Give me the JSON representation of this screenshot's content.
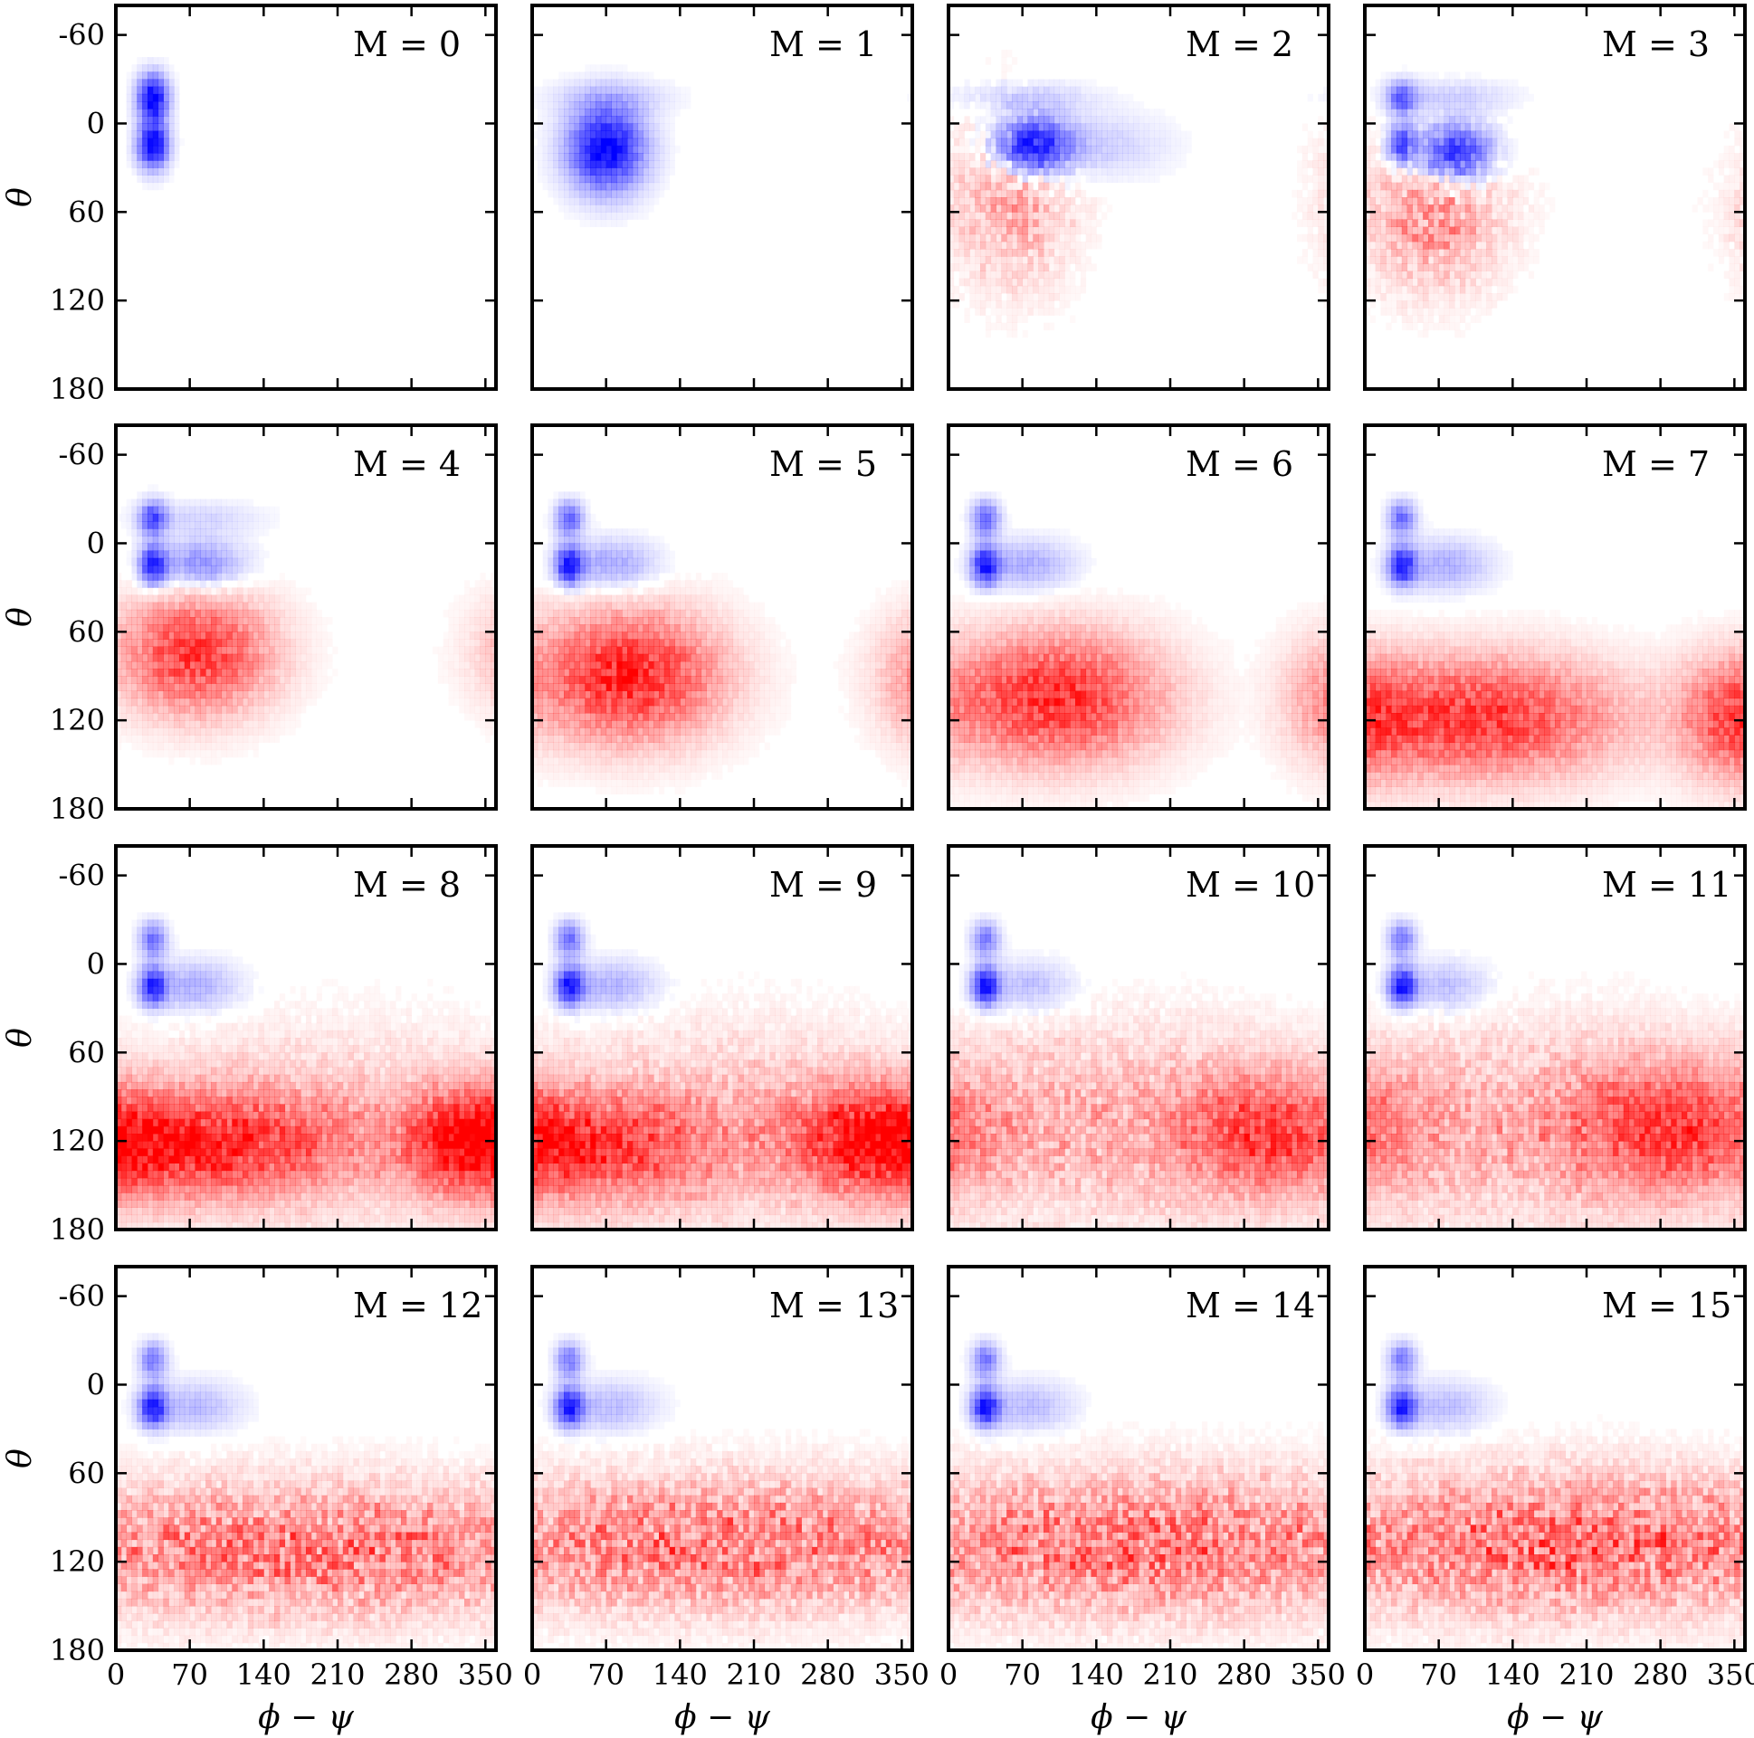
{
  "chart_data": {
    "type": "heatmap",
    "layout": "4x4 grid of panels",
    "xlabel": "ϕ − ψ",
    "ylabel": "θ",
    "xlim": [
      0,
      360
    ],
    "ylim": [
      -80,
      180
    ],
    "y_inverted": true,
    "xticks": [
      0,
      70,
      140,
      210,
      280,
      350
    ],
    "yticks": [
      -60,
      0,
      60,
      120,
      180
    ],
    "colors": {
      "positive": "#ff0000",
      "negative": "#0000ff",
      "zero": "#ffffff"
    },
    "panels": [
      {
        "title": "M = 0",
        "blue": [
          {
            "phi": 35,
            "theta": -17,
            "sphi": 10,
            "stheta": 11,
            "amp": 1.0
          },
          {
            "phi": 35,
            "theta": 15,
            "sphi": 10,
            "stheta": 11,
            "amp": 1.0
          }
        ],
        "red": []
      },
      {
        "title": "M = 1",
        "blue": [
          {
            "phi": 70,
            "theta": 17,
            "sphi": 25,
            "stheta": 20,
            "amp": 1.0
          },
          {
            "phi": 75,
            "theta": -18,
            "sphi": 40,
            "stheta": 8,
            "amp": 0.15
          }
        ],
        "red": []
      },
      {
        "title": "M = 2",
        "blue": [
          {
            "phi": 78,
            "theta": 15,
            "sphi": 25,
            "stheta": 14,
            "amp": 0.95
          },
          {
            "phi": 70,
            "theta": -18,
            "sphi": 45,
            "stheta": 8,
            "amp": 0.2
          },
          {
            "phi": 130,
            "theta": 15,
            "sphi": 50,
            "stheta": 15,
            "amp": 0.2
          }
        ],
        "red": [
          {
            "phi": 60,
            "theta": 50,
            "sphi": 40,
            "stheta": 40,
            "amp": 0.35,
            "sparse": true
          }
        ]
      },
      {
        "title": "M = 3",
        "blue": [
          {
            "phi": 85,
            "theta": 20,
            "sphi": 25,
            "stheta": 14,
            "amp": 0.9
          },
          {
            "phi": 35,
            "theta": 15,
            "sphi": 10,
            "stheta": 10,
            "amp": 0.7
          },
          {
            "phi": 35,
            "theta": -17,
            "sphi": 10,
            "stheta": 8,
            "amp": 0.55
          },
          {
            "phi": 80,
            "theta": -18,
            "sphi": 40,
            "stheta": 8,
            "amp": 0.2
          }
        ],
        "red": [
          {
            "phi": 65,
            "theta": 60,
            "sphi": 45,
            "stheta": 35,
            "amp": 0.4,
            "sparse": true
          }
        ]
      },
      {
        "title": "M = 4",
        "blue": [
          {
            "phi": 35,
            "theta": 15,
            "sphi": 9,
            "stheta": 9,
            "amp": 0.85
          },
          {
            "phi": 35,
            "theta": -17,
            "sphi": 9,
            "stheta": 8,
            "amp": 0.65
          },
          {
            "phi": 80,
            "theta": 15,
            "sphi": 30,
            "stheta": 12,
            "amp": 0.45
          },
          {
            "phi": 80,
            "theta": -17,
            "sphi": 40,
            "stheta": 8,
            "amp": 0.15
          }
        ],
        "red": [
          {
            "phi": 75,
            "theta": 75,
            "sphi": 50,
            "stheta": 28,
            "amp": 0.75
          }
        ]
      },
      {
        "title": "M = 5",
        "blue": [
          {
            "phi": 35,
            "theta": 15,
            "sphi": 9,
            "stheta": 9,
            "amp": 0.85
          },
          {
            "phi": 35,
            "theta": -17,
            "sphi": 9,
            "stheta": 8,
            "amp": 0.6
          },
          {
            "phi": 75,
            "theta": 15,
            "sphi": 30,
            "stheta": 12,
            "amp": 0.35
          }
        ],
        "red": [
          {
            "phi": 90,
            "theta": 90,
            "sphi": 60,
            "stheta": 30,
            "amp": 0.85
          },
          {
            "phi": 355,
            "theta": 95,
            "sphi": 20,
            "stheta": 30,
            "amp": 0.12
          }
        ]
      },
      {
        "title": "M = 6",
        "blue": [
          {
            "phi": 35,
            "theta": 15,
            "sphi": 9,
            "stheta": 9,
            "amp": 0.85
          },
          {
            "phi": 35,
            "theta": -17,
            "sphi": 9,
            "stheta": 8,
            "amp": 0.6
          },
          {
            "phi": 75,
            "theta": 15,
            "sphi": 30,
            "stheta": 12,
            "amp": 0.3
          }
        ],
        "red": [
          {
            "phi": 100,
            "theta": 105,
            "sphi": 70,
            "stheta": 30,
            "amp": 0.8
          },
          {
            "phi": 355,
            "theta": 110,
            "sphi": 25,
            "stheta": 30,
            "amp": 0.15
          }
        ]
      },
      {
        "title": "M = 7",
        "blue": [
          {
            "phi": 35,
            "theta": 15,
            "sphi": 9,
            "stheta": 9,
            "amp": 0.8
          },
          {
            "phi": 35,
            "theta": -17,
            "sphi": 9,
            "stheta": 8,
            "amp": 0.55
          },
          {
            "phi": 75,
            "theta": 15,
            "sphi": 30,
            "stheta": 12,
            "amp": 0.3
          }
        ],
        "red": [
          {
            "phi": 110,
            "theta": 118,
            "sphi": 90,
            "stheta": 28,
            "amp": 0.75
          },
          {
            "phi": 350,
            "theta": 118,
            "sphi": 40,
            "stheta": 28,
            "amp": 0.45
          }
        ]
      },
      {
        "title": "M = 8",
        "blue": [
          {
            "phi": 35,
            "theta": 15,
            "sphi": 9,
            "stheta": 9,
            "amp": 0.8
          },
          {
            "phi": 35,
            "theta": -17,
            "sphi": 9,
            "stheta": 8,
            "amp": 0.55
          },
          {
            "phi": 75,
            "theta": 15,
            "sphi": 30,
            "stheta": 12,
            "amp": 0.3
          }
        ],
        "red": [
          {
            "phi": 80,
            "theta": 122,
            "sphi": 100,
            "stheta": 25,
            "amp": 0.7
          },
          {
            "phi": 340,
            "theta": 120,
            "sphi": 45,
            "stheta": 25,
            "amp": 0.6
          },
          {
            "phi": 200,
            "theta": 110,
            "sphi": 150,
            "stheta": 45,
            "amp": 0.2,
            "sparse": true
          }
        ]
      },
      {
        "title": "M = 9",
        "blue": [
          {
            "phi": 35,
            "theta": 15,
            "sphi": 9,
            "stheta": 9,
            "amp": 0.85
          },
          {
            "phi": 35,
            "theta": -17,
            "sphi": 9,
            "stheta": 8,
            "amp": 0.55
          },
          {
            "phi": 75,
            "theta": 15,
            "sphi": 30,
            "stheta": 12,
            "amp": 0.3
          }
        ],
        "red": [
          {
            "phi": 60,
            "theta": 125,
            "sphi": 80,
            "stheta": 25,
            "amp": 0.55
          },
          {
            "phi": 320,
            "theta": 118,
            "sphi": 55,
            "stheta": 25,
            "amp": 0.65
          },
          {
            "phi": 180,
            "theta": 110,
            "sphi": 150,
            "stheta": 45,
            "amp": 0.25,
            "sparse": true
          }
        ]
      },
      {
        "title": "M = 10",
        "blue": [
          {
            "phi": 35,
            "theta": 15,
            "sphi": 9,
            "stheta": 9,
            "amp": 0.85
          },
          {
            "phi": 35,
            "theta": -17,
            "sphi": 9,
            "stheta": 8,
            "amp": 0.5
          },
          {
            "phi": 75,
            "theta": 15,
            "sphi": 30,
            "stheta": 12,
            "amp": 0.25
          }
        ],
        "red": [
          {
            "phi": 310,
            "theta": 115,
            "sphi": 60,
            "stheta": 28,
            "amp": 0.6
          },
          {
            "phi": 150,
            "theta": 110,
            "sphi": 150,
            "stheta": 45,
            "amp": 0.3,
            "sparse": true
          }
        ]
      },
      {
        "title": "M = 11",
        "blue": [
          {
            "phi": 35,
            "theta": 15,
            "sphi": 9,
            "stheta": 9,
            "amp": 0.85
          },
          {
            "phi": 35,
            "theta": -17,
            "sphi": 9,
            "stheta": 8,
            "amp": 0.5
          },
          {
            "phi": 75,
            "theta": 15,
            "sphi": 30,
            "stheta": 12,
            "amp": 0.25
          }
        ],
        "red": [
          {
            "phi": 300,
            "theta": 112,
            "sphi": 70,
            "stheta": 30,
            "amp": 0.6
          },
          {
            "phi": 150,
            "theta": 110,
            "sphi": 150,
            "stheta": 45,
            "amp": 0.3,
            "sparse": true
          }
        ]
      },
      {
        "title": "M = 12",
        "blue": [
          {
            "phi": 35,
            "theta": 15,
            "sphi": 9,
            "stheta": 9,
            "amp": 0.85
          },
          {
            "phi": 35,
            "theta": -17,
            "sphi": 9,
            "stheta": 8,
            "amp": 0.5
          },
          {
            "phi": 75,
            "theta": 15,
            "sphi": 30,
            "stheta": 12,
            "amp": 0.25
          }
        ],
        "red": [
          {
            "phi": 180,
            "theta": 112,
            "sphi": 220,
            "stheta": 30,
            "amp": 0.55,
            "sparse": true
          }
        ]
      },
      {
        "title": "M = 13",
        "blue": [
          {
            "phi": 35,
            "theta": 15,
            "sphi": 9,
            "stheta": 9,
            "amp": 0.85
          },
          {
            "phi": 35,
            "theta": -17,
            "sphi": 9,
            "stheta": 8,
            "amp": 0.5
          },
          {
            "phi": 75,
            "theta": 15,
            "sphi": 30,
            "stheta": 12,
            "amp": 0.25
          }
        ],
        "red": [
          {
            "phi": 180,
            "theta": 108,
            "sphi": 220,
            "stheta": 30,
            "amp": 0.55,
            "sparse": true
          }
        ]
      },
      {
        "title": "M = 14",
        "blue": [
          {
            "phi": 35,
            "theta": 15,
            "sphi": 9,
            "stheta": 9,
            "amp": 0.85
          },
          {
            "phi": 35,
            "theta": -17,
            "sphi": 9,
            "stheta": 8,
            "amp": 0.5
          },
          {
            "phi": 75,
            "theta": 15,
            "sphi": 30,
            "stheta": 12,
            "amp": 0.25
          }
        ],
        "red": [
          {
            "phi": 180,
            "theta": 108,
            "sphi": 220,
            "stheta": 32,
            "amp": 0.55,
            "sparse": true
          }
        ]
      },
      {
        "title": "M = 15",
        "blue": [
          {
            "phi": 35,
            "theta": 15,
            "sphi": 9,
            "stheta": 9,
            "amp": 0.85
          },
          {
            "phi": 35,
            "theta": -17,
            "sphi": 9,
            "stheta": 8,
            "amp": 0.5
          },
          {
            "phi": 75,
            "theta": 15,
            "sphi": 30,
            "stheta": 12,
            "amp": 0.25
          }
        ],
        "red": [
          {
            "phi": 200,
            "theta": 108,
            "sphi": 200,
            "stheta": 32,
            "amp": 0.6,
            "sparse": true
          }
        ]
      }
    ]
  }
}
